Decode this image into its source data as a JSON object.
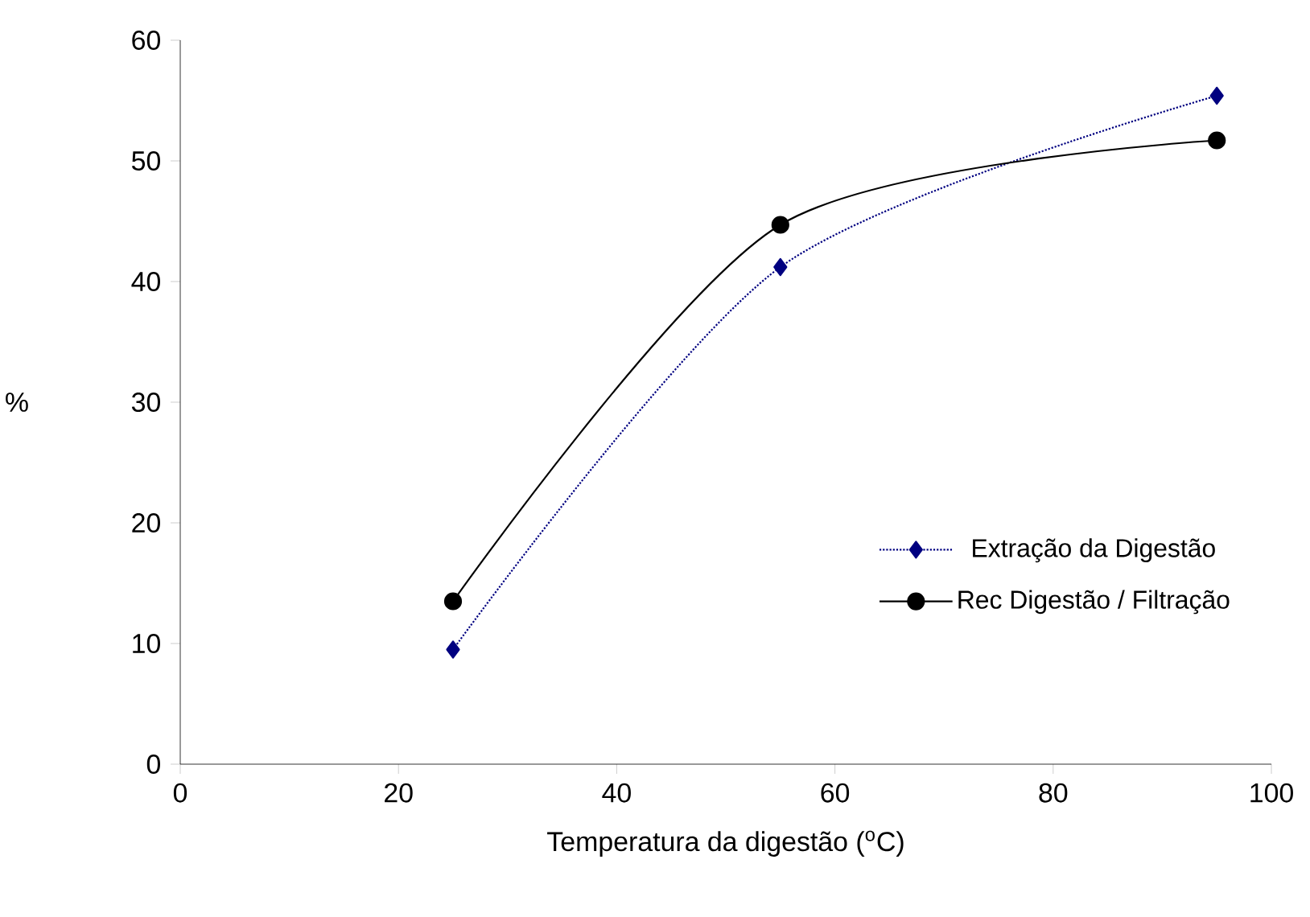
{
  "chart_data": {
    "type": "line",
    "xlabel": "Temperatura da digestão ($^{o}$C)",
    "ylabel": "%",
    "xlim": [
      0,
      100
    ],
    "xticks": [
      0,
      20,
      40,
      60,
      80,
      100
    ],
    "ylim": [
      0,
      60
    ],
    "yticks": [
      0,
      10,
      20,
      30,
      40,
      50,
      60
    ],
    "grid": false,
    "legend": "bottom right",
    "series": [
      {
        "name": "Extração da Digestão",
        "color": "#000080",
        "x": [
          25,
          55,
          95
        ],
        "values": [
          9.5,
          41.2,
          55.4
        ],
        "marker": "diamond",
        "line_style": "dotted"
      },
      {
        "name": "Rec Digestão / Filtração",
        "color": "#000000",
        "x": [
          25,
          55,
          95
        ],
        "values": [
          13.5,
          44.7,
          51.7
        ],
        "marker": "circle",
        "line_style": "solid"
      }
    ]
  }
}
